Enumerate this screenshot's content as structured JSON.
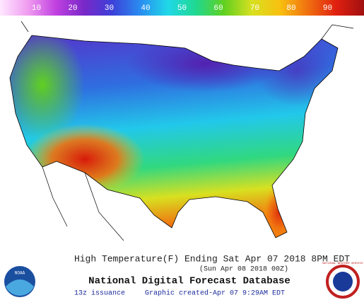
{
  "legend": {
    "lim": [
      0,
      100
    ],
    "ticks": [
      10,
      20,
      30,
      40,
      50,
      60,
      70,
      80,
      90
    ],
    "colors": [
      "#ffe8ff",
      "#f09cf0",
      "#c040e0",
      "#7a28c8",
      "#3c40d8",
      "#2a8cf0",
      "#20d8e8",
      "#20d890",
      "#60d020",
      "#d8e020",
      "#f8c010",
      "#f07010",
      "#e02010",
      "#a01010"
    ]
  },
  "caption": {
    "line1": "High Temperature(F) Ending Sat Apr 07 2018  8PM EDT",
    "line2": "(Sun Apr 08 2018 00Z)",
    "title": "National Digital Forecast Database",
    "issuance": "13z issuance",
    "created": "Graphic created-Apr 07  9:29AM EDT"
  },
  "logos": {
    "left": "NOAA",
    "right": "NATIONAL WEATHER SERVICE"
  }
}
